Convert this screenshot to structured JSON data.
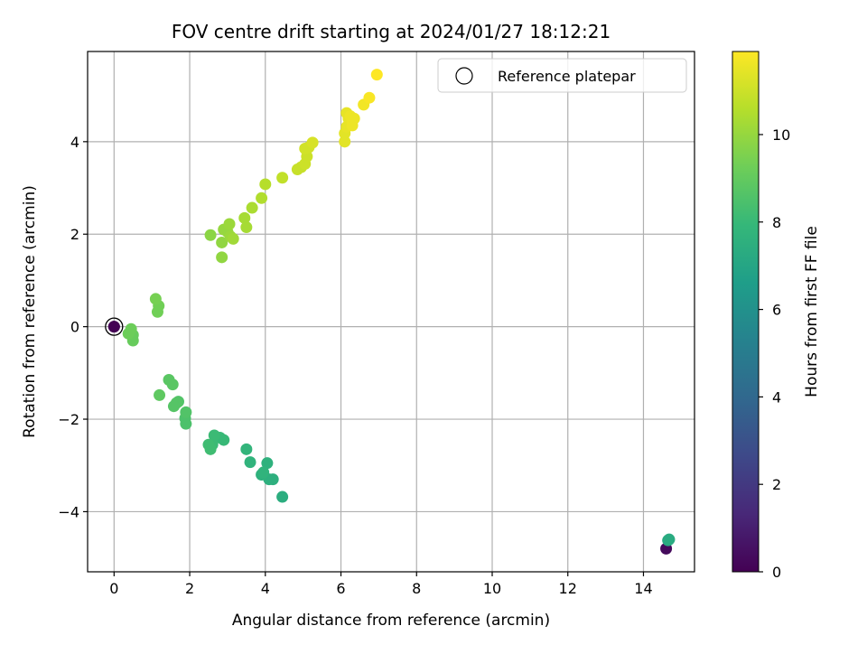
{
  "chart_data": {
    "type": "scatter",
    "title": "FOV centre drift starting at 2024/01/27 18:12:21",
    "xlabel": "Angular distance from reference (arcmin)",
    "ylabel": "Rotation from reference (arcmin)",
    "xlim": [
      -0.7,
      15.35
    ],
    "ylim": [
      -5.3,
      5.95
    ],
    "grid": true,
    "x_ticks": [
      0,
      2,
      4,
      6,
      8,
      10,
      12,
      14
    ],
    "x_tick_labels": [
      "0",
      "2",
      "4",
      "6",
      "8",
      "10",
      "12",
      "14"
    ],
    "y_ticks": [
      -4,
      -2,
      0,
      2,
      4
    ],
    "y_tick_labels": [
      "−4",
      "−2",
      "0",
      "2",
      "4"
    ],
    "legend": {
      "placement": "top-right",
      "entries": [
        "Reference platepar"
      ]
    },
    "reference_point": {
      "x": 0,
      "y": 0,
      "c": 0
    },
    "colorbar": {
      "label": "Hours from first FF file",
      "range": [
        0,
        11.9
      ],
      "ticks": [
        0,
        2,
        4,
        6,
        8,
        10
      ],
      "tick_labels": [
        "0",
        "2",
        "4",
        "6",
        "8",
        "10"
      ],
      "colormap": "viridis"
    },
    "points": [
      {
        "x": 0.0,
        "y": 0.0,
        "c": 0.0
      },
      {
        "x": 14.6,
        "y": -4.8,
        "c": 0.3
      },
      {
        "x": 14.65,
        "y": -4.62,
        "c": 7.2
      },
      {
        "x": 14.68,
        "y": -4.6,
        "c": 7.3
      },
      {
        "x": 4.45,
        "y": -3.68,
        "c": 7.4
      },
      {
        "x": 4.2,
        "y": -3.3,
        "c": 7.5
      },
      {
        "x": 4.1,
        "y": -3.3,
        "c": 7.5
      },
      {
        "x": 4.05,
        "y": -2.95,
        "c": 7.6
      },
      {
        "x": 3.9,
        "y": -3.2,
        "c": 7.6
      },
      {
        "x": 3.95,
        "y": -3.15,
        "c": 7.7
      },
      {
        "x": 3.6,
        "y": -2.93,
        "c": 7.7
      },
      {
        "x": 3.5,
        "y": -2.65,
        "c": 7.8
      },
      {
        "x": 2.9,
        "y": -2.45,
        "c": 8.0
      },
      {
        "x": 2.8,
        "y": -2.4,
        "c": 8.0
      },
      {
        "x": 2.65,
        "y": -2.35,
        "c": 8.1
      },
      {
        "x": 2.6,
        "y": -2.55,
        "c": 8.1
      },
      {
        "x": 2.55,
        "y": -2.65,
        "c": 8.2
      },
      {
        "x": 2.5,
        "y": -2.55,
        "c": 8.2
      },
      {
        "x": 1.9,
        "y": -2.1,
        "c": 8.5
      },
      {
        "x": 1.88,
        "y": -1.98,
        "c": 8.5
      },
      {
        "x": 1.9,
        "y": -1.85,
        "c": 8.6
      },
      {
        "x": 1.7,
        "y": -1.62,
        "c": 8.6
      },
      {
        "x": 1.65,
        "y": -1.65,
        "c": 8.7
      },
      {
        "x": 1.58,
        "y": -1.72,
        "c": 8.7
      },
      {
        "x": 1.55,
        "y": -1.25,
        "c": 8.8
      },
      {
        "x": 1.45,
        "y": -1.15,
        "c": 8.8
      },
      {
        "x": 1.2,
        "y": -1.48,
        "c": 8.9
      },
      {
        "x": 0.5,
        "y": -0.3,
        "c": 9.1
      },
      {
        "x": 0.5,
        "y": -0.18,
        "c": 9.1
      },
      {
        "x": 0.45,
        "y": -0.05,
        "c": 9.2
      },
      {
        "x": 0.38,
        "y": -0.15,
        "c": 9.2
      },
      {
        "x": 1.15,
        "y": 0.32,
        "c": 9.3
      },
      {
        "x": 1.18,
        "y": 0.45,
        "c": 9.3
      },
      {
        "x": 1.1,
        "y": 0.6,
        "c": 9.4
      },
      {
        "x": 2.55,
        "y": 1.98,
        "c": 9.8
      },
      {
        "x": 2.85,
        "y": 1.5,
        "c": 9.9
      },
      {
        "x": 2.85,
        "y": 1.82,
        "c": 9.9
      },
      {
        "x": 2.9,
        "y": 2.1,
        "c": 10.0
      },
      {
        "x": 3.0,
        "y": 2.05,
        "c": 10.0
      },
      {
        "x": 3.05,
        "y": 2.22,
        "c": 10.1
      },
      {
        "x": 3.08,
        "y": 1.95,
        "c": 10.1
      },
      {
        "x": 3.15,
        "y": 1.9,
        "c": 10.2
      },
      {
        "x": 3.45,
        "y": 2.35,
        "c": 10.3
      },
      {
        "x": 3.5,
        "y": 2.15,
        "c": 10.3
      },
      {
        "x": 3.65,
        "y": 2.57,
        "c": 10.4
      },
      {
        "x": 3.9,
        "y": 2.78,
        "c": 10.5
      },
      {
        "x": 4.0,
        "y": 3.08,
        "c": 10.6
      },
      {
        "x": 4.45,
        "y": 3.22,
        "c": 10.8
      },
      {
        "x": 4.85,
        "y": 3.4,
        "c": 10.9
      },
      {
        "x": 4.95,
        "y": 3.45,
        "c": 10.9
      },
      {
        "x": 5.05,
        "y": 3.52,
        "c": 11.0
      },
      {
        "x": 5.1,
        "y": 3.68,
        "c": 11.0
      },
      {
        "x": 5.05,
        "y": 3.85,
        "c": 11.1
      },
      {
        "x": 5.15,
        "y": 3.88,
        "c": 11.1
      },
      {
        "x": 5.25,
        "y": 3.98,
        "c": 11.2
      },
      {
        "x": 6.1,
        "y": 4.0,
        "c": 11.4
      },
      {
        "x": 6.1,
        "y": 4.18,
        "c": 11.4
      },
      {
        "x": 6.15,
        "y": 4.32,
        "c": 11.5
      },
      {
        "x": 6.2,
        "y": 4.5,
        "c": 11.5
      },
      {
        "x": 6.15,
        "y": 4.62,
        "c": 11.5
      },
      {
        "x": 6.25,
        "y": 4.55,
        "c": 11.6
      },
      {
        "x": 6.3,
        "y": 4.35,
        "c": 11.6
      },
      {
        "x": 6.3,
        "y": 4.45,
        "c": 11.6
      },
      {
        "x": 6.35,
        "y": 4.5,
        "c": 11.6
      },
      {
        "x": 6.6,
        "y": 4.8,
        "c": 11.7
      },
      {
        "x": 6.75,
        "y": 4.95,
        "c": 11.8
      },
      {
        "x": 6.95,
        "y": 5.45,
        "c": 11.9
      }
    ]
  }
}
